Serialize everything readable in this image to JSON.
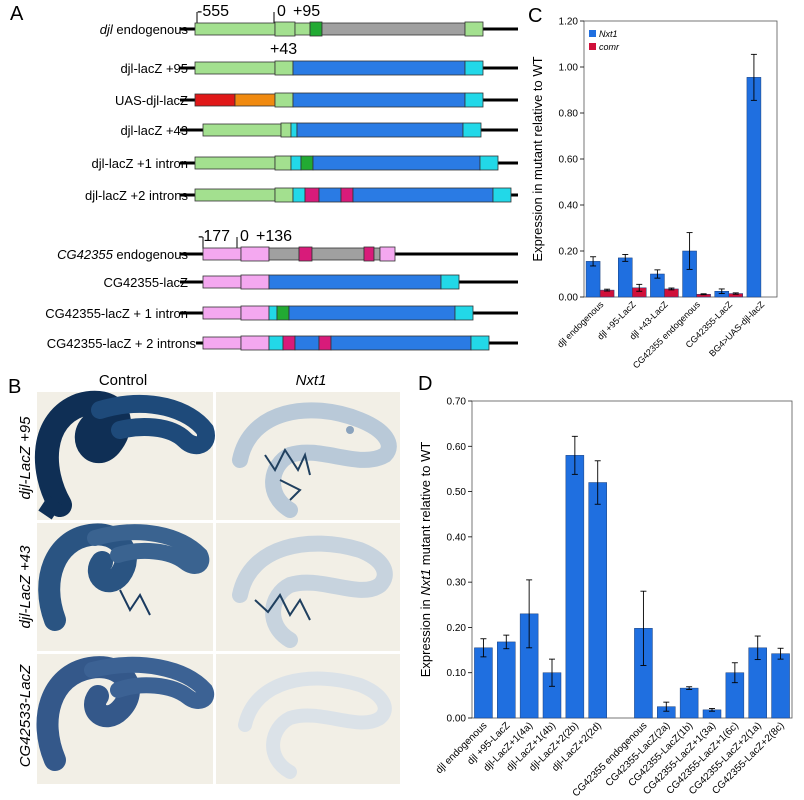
{
  "panels": {
    "a": "A",
    "b": "B",
    "c": "C",
    "d": "D"
  },
  "diagram": {
    "djl_positions": [
      "-555",
      "0",
      "+95",
      "+43"
    ],
    "cg_positions": [
      "-177",
      "0",
      "+136"
    ],
    "constructs": [
      {
        "label_italic": "djl",
        "label": " endogenous"
      },
      {
        "label": "djl-lacZ +95"
      },
      {
        "label": "UAS-djl-lacZ"
      },
      {
        "label": "djl-lacZ +43"
      },
      {
        "label": "djl-lacZ +1 intron"
      },
      {
        "label": "djl-lacZ +2 introns"
      },
      {
        "label_italic": "CG42355",
        "label": " endogenous"
      },
      {
        "label": "CG42355-lacZ"
      },
      {
        "label": "CG42355-lacZ + 1 intron"
      },
      {
        "label": "CG42355-lacZ + 2 introns"
      }
    ]
  },
  "photo_panel": {
    "col_control": "Control",
    "col_nxt1": "Nxt1",
    "rows": [
      "djl-LacZ +95",
      "djl-LacZ +43",
      "CG42533-LacZ"
    ]
  },
  "colors": {
    "nxt1": "#1f6fe0",
    "comr": "#d0103a"
  },
  "chart_data": [
    {
      "type": "bar",
      "panel": "C",
      "ylabel": "Expression in mutant relative to WT",
      "ylim": [
        0,
        1.2
      ],
      "yticks": [
        "0.00",
        "0.20",
        "0.40",
        "0.60",
        "0.80",
        "1.00",
        "1.20"
      ],
      "categories": [
        "djl endogenous",
        "djl +95-LacZ",
        "djl +43-LacZ",
        "CG42355 endogenous",
        "CG42355-LacZ",
        "BG4>UAS-djl-lacZ"
      ],
      "series": [
        {
          "name": "Nxt1",
          "values": [
            0.155,
            0.17,
            0.1,
            0.2,
            0.025,
            0.955
          ],
          "errors": [
            0.02,
            0.015,
            0.018,
            0.08,
            0.01,
            0.1
          ]
        },
        {
          "name": "comr",
          "values": [
            0.03,
            0.04,
            0.035,
            0.012,
            0.015,
            null
          ],
          "errors": [
            0.004,
            0.015,
            0.004,
            0.002,
            0.003,
            null
          ]
        }
      ],
      "legend": "top-left"
    },
    {
      "type": "bar",
      "panel": "D",
      "ylabel_parts": [
        "Expression in ",
        "Nxt1",
        " mutant relative to WT"
      ],
      "ylim": [
        0,
        0.7
      ],
      "yticks": [
        "0.00",
        "0.10",
        "0.20",
        "0.30",
        "0.40",
        "0.50",
        "0.60",
        "0.70"
      ],
      "categories": [
        "djl endogenous",
        "djl +95-LacZ",
        "djl-LacZ+1(4a)",
        "djl-LacZ+1(4b)",
        "djl-LacZ+2(2b)",
        "djl-LacZ+2(2d)",
        "",
        "CG42355 endogenous",
        "CG42355-LacZ(2a)",
        "CG42355-LacZ(1b)",
        "CG42355-LacZ+1(3a)",
        "CG42355-LacZ+1(6c)",
        "CG42355-LacZ+2(1a)",
        "CG42355-LacZ+2(8c)"
      ],
      "values": [
        0.155,
        0.168,
        0.23,
        0.1,
        0.58,
        0.52,
        null,
        0.198,
        0.025,
        0.066,
        0.018,
        0.1,
        0.155,
        0.142
      ],
      "errors": [
        0.02,
        0.015,
        0.075,
        0.03,
        0.042,
        0.048,
        null,
        0.082,
        0.01,
        0.003,
        0.003,
        0.022,
        0.026,
        0.012
      ]
    }
  ]
}
